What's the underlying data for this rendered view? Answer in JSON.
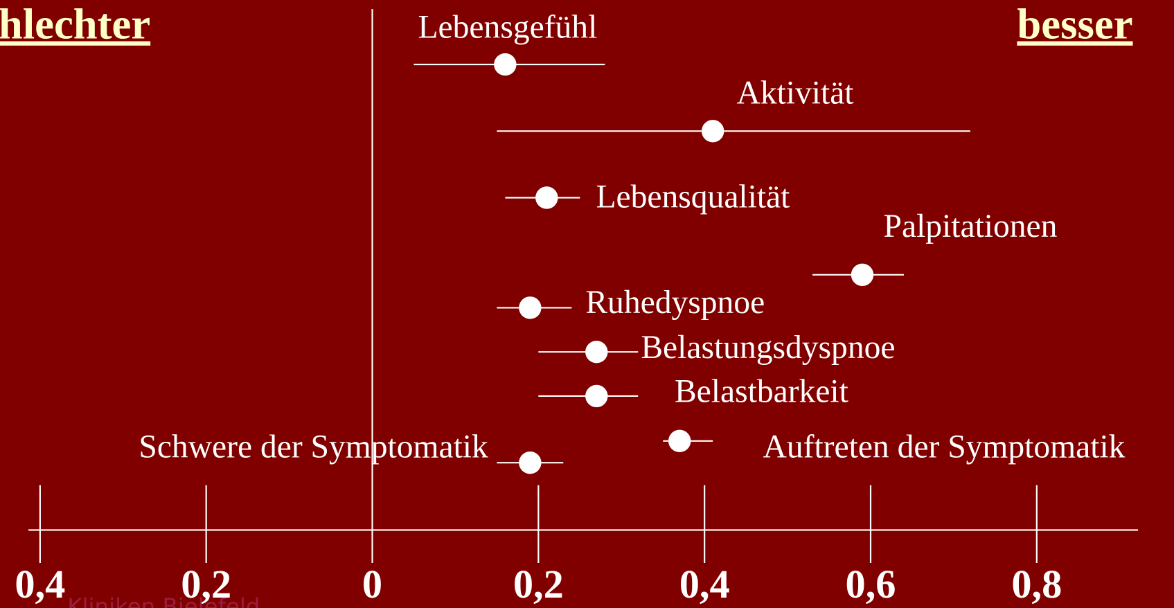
{
  "chart_data": {
    "type": "forest",
    "left_label": "hlechter",
    "right_label": "besser",
    "watermark": "Kliniken Bielefeld",
    "xlim": [
      -0.414,
      0.922
    ],
    "xticks": [
      {
        "value": -0.4,
        "label": "0,4"
      },
      {
        "value": -0.2,
        "label": "0,2"
      },
      0,
      {
        "value": 0.2,
        "label": "0,2"
      },
      {
        "value": 0.4,
        "label": "0,4"
      },
      {
        "value": 0.6,
        "label": "0,6"
      },
      {
        "value": 0.8,
        "label": "0,8"
      }
    ],
    "color": "#ffffff",
    "items": [
      {
        "label": "Lebensgefühl",
        "value": 0.16,
        "ci_low": 0.05,
        "ci_high": 0.28
      },
      {
        "label": "Aktivität",
        "value": 0.41,
        "ci_low": 0.15,
        "ci_high": 0.72
      },
      {
        "label": "Lebensqualität",
        "value": 0.21,
        "ci_low": 0.16,
        "ci_high": 0.25
      },
      {
        "label": "Palpitationen",
        "value": 0.59,
        "ci_low": 0.53,
        "ci_high": 0.64
      },
      {
        "label": "Ruhedyspnoe",
        "value": 0.19,
        "ci_low": 0.15,
        "ci_high": 0.24
      },
      {
        "label": "Belastungsdyspnoe",
        "value": 0.27,
        "ci_low": 0.2,
        "ci_high": 0.32
      },
      {
        "label": "Belastbarkeit",
        "value": 0.27,
        "ci_low": 0.2,
        "ci_high": 0.32
      },
      {
        "label": "Auftreten der Symptomatik",
        "value": 0.37,
        "ci_low": 0.35,
        "ci_high": 0.41
      },
      {
        "label": "Schwere der Symptomatik",
        "value": 0.19,
        "ci_low": 0.15,
        "ci_high": 0.23
      }
    ]
  }
}
